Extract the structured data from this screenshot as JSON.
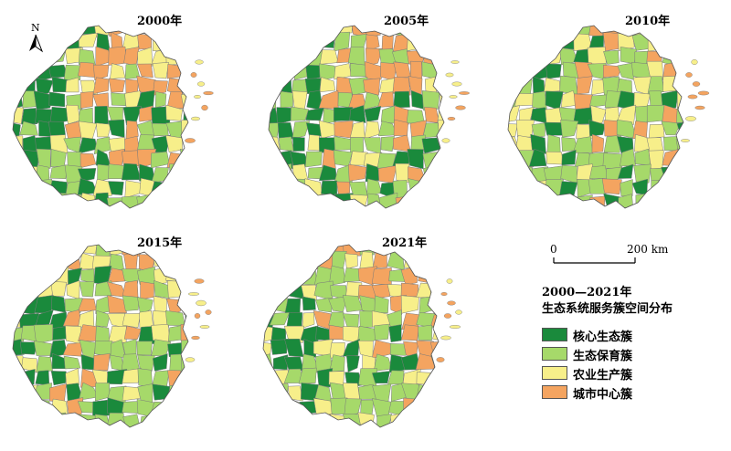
{
  "maps": [
    {
      "year": "2000年"
    },
    {
      "year": "2005年"
    },
    {
      "year": "2010年"
    },
    {
      "year": "2015年"
    },
    {
      "year": "2021年"
    }
  ],
  "north_arrow": {
    "label": "N"
  },
  "scale_bar": {
    "start_label": "0",
    "end_label": "200 km"
  },
  "legend": {
    "title_line1": "2000—2021年",
    "title_line2": "生态系统服务簇空间分布",
    "items": [
      {
        "label": "核心生态簇",
        "color": "#1a8a3c"
      },
      {
        "label": "生态保育簇",
        "color": "#a6d96a"
      },
      {
        "label": "农业生产簇",
        "color": "#f7ef8a"
      },
      {
        "label": "城市中心簇",
        "color": "#f4a460"
      }
    ]
  }
}
